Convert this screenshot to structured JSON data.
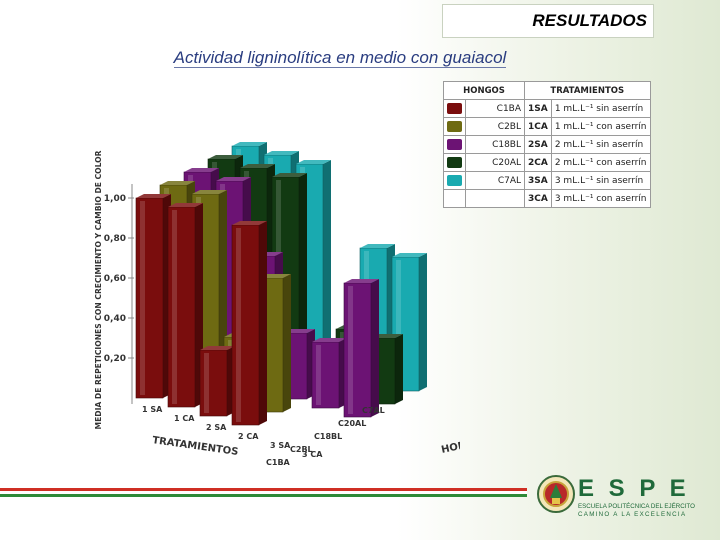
{
  "slide": {
    "title": "RESULTADOS",
    "subtitle": "Actividad ligninolítica en medio con guaiacol"
  },
  "legend": {
    "fungi_header": "HONGOS",
    "treatments_header": "TRATAMIENTOS",
    "fungi": [
      {
        "name": "C1BA",
        "color": "#7a0d0d"
      },
      {
        "name": "C2BL",
        "color": "#6e6a12"
      },
      {
        "name": "C18BL",
        "color": "#6c1374"
      },
      {
        "name": "C20AL",
        "color": "#123a12"
      },
      {
        "name": "C7AL",
        "color": "#19aab0"
      }
    ],
    "treatments": [
      {
        "code": "1SA",
        "desc": "1 mL.L⁻¹ sin aserrín"
      },
      {
        "code": "1CA",
        "desc": "1 mL.L⁻¹ con aserrín"
      },
      {
        "code": "2SA",
        "desc": "2 mL.L⁻¹ sin aserrín"
      },
      {
        "code": "2CA",
        "desc": "2 mL.L⁻¹ con aserrín"
      },
      {
        "code": "3SA",
        "desc": "3 mL.L⁻¹ sin aserrín"
      },
      {
        "code": "3CA",
        "desc": "3 mL.L⁻¹ con aserrín"
      }
    ]
  },
  "chart_data": {
    "type": "bar3d",
    "ylabel": "MEDIA DE REPETICIONES CON CRECIMIENTO Y CAMBIO DE COLOR",
    "xlabel": "TRATAMIENTOS",
    "zlabel": "HONGOS",
    "yticks": [
      "0,20",
      "0,40",
      "0,60",
      "0,80",
      "1,00"
    ],
    "ylim": [
      0,
      1.0
    ],
    "categories": [
      "1 SA",
      "1 CA",
      "2 SA",
      "2 CA",
      "3 SA",
      "3 CA"
    ],
    "series": [
      {
        "name": "C1BA",
        "color": "#7a0d0d",
        "values": [
          1.0,
          1.0,
          0.33,
          1.0,
          0.0,
          0.0
        ]
      },
      {
        "name": "C2BL",
        "color": "#6e6a12",
        "values": [
          1.0,
          1.0,
          0.33,
          0.67,
          0.0,
          0.0
        ]
      },
      {
        "name": "C18BL",
        "color": "#6c1374",
        "values": [
          1.0,
          1.0,
          0.67,
          0.33,
          0.33,
          0.67
        ]
      },
      {
        "name": "C20AL",
        "color": "#123a12",
        "values": [
          1.0,
          1.0,
          1.0,
          0.0,
          0.33,
          0.33
        ]
      },
      {
        "name": "C7AL",
        "color": "#19aab0",
        "values": [
          1.0,
          1.0,
          1.0,
          0.0,
          0.67,
          0.67
        ]
      }
    ]
  },
  "logo": {
    "wordmark": "E S P E",
    "line1": "ESCUELA POLITÉCNICA DEL EJÉRCITO",
    "line2": "CAMINO A LA EXCELENCIA"
  },
  "footer_colors": [
    "#cf2f24",
    "#ffffff",
    "#2e8a38"
  ]
}
